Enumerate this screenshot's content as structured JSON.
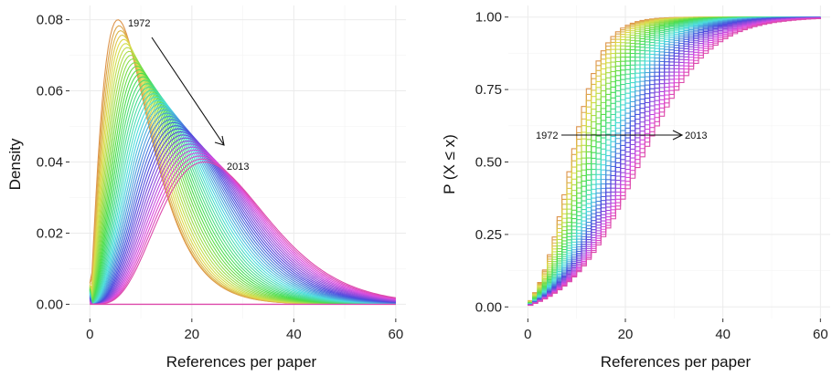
{
  "chart_data": [
    {
      "type": "line",
      "panel": "density",
      "xlabel": "References per paper",
      "ylabel": "Density",
      "xlim": [
        -4,
        62
      ],
      "ylim": [
        -0.004,
        0.084
      ],
      "x_ticks": [
        0,
        20,
        40,
        60
      ],
      "x_tick_labels": [
        "0",
        "20",
        "40",
        "60"
      ],
      "y_ticks": [
        0.0,
        0.02,
        0.04,
        0.06,
        0.08
      ],
      "y_tick_labels": [
        "0.00",
        "0.02",
        "0.04",
        "0.06",
        "0.08"
      ],
      "grid": true,
      "series_count": 42,
      "start_year_label": "1972",
      "end_year_label": "2013",
      "peaks": {
        "first": {
          "x": 5.5,
          "y": 0.08
        },
        "last": {
          "x": 22.5,
          "y": 0.04
        }
      },
      "annotation": {
        "from": "1972",
        "to": "2013",
        "arrow": "diagonal-down-right"
      }
    },
    {
      "type": "line",
      "panel": "cdf",
      "xlabel": "References per paper",
      "ylabel": "P (X ≤ x)",
      "xlim": [
        -4,
        62
      ],
      "ylim": [
        -0.04,
        1.04
      ],
      "x_ticks": [
        0,
        20,
        40,
        60
      ],
      "x_tick_labels": [
        "0",
        "20",
        "40",
        "60"
      ],
      "y_ticks": [
        0.0,
        0.25,
        0.5,
        0.75,
        1.0
      ],
      "y_tick_labels": [
        "0.00",
        "0.25",
        "0.50",
        "0.75",
        "1.00"
      ],
      "grid": true,
      "series_count": 42,
      "step": true,
      "start_year_label": "1972",
      "end_year_label": "2013",
      "medians": {
        "first": 8,
        "last": 22
      },
      "annotation": {
        "from": "1972",
        "to": "2013",
        "arrow": "horizontal-right",
        "y": 0.6
      }
    }
  ],
  "colors": {
    "early": "#e7861b",
    "middle": "#1fb8b0",
    "late": "#f564e3"
  }
}
